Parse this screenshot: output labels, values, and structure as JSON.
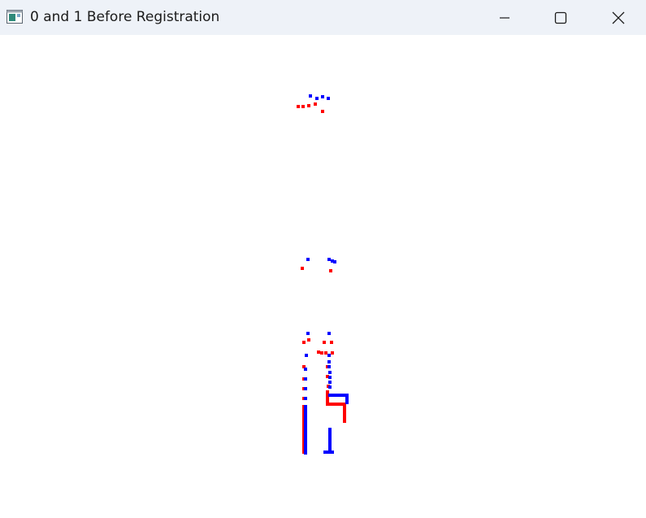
{
  "window": {
    "title": "0 and 1 Before Registration"
  },
  "controls": {
    "minimize": "minimize-icon",
    "maximize": "maximize-icon",
    "close": "close-icon"
  },
  "colors": {
    "titlebar": "#eef2f8",
    "cloud0": "#ff0000",
    "cloud1": "#0000ff",
    "background": "#ffffff"
  }
}
